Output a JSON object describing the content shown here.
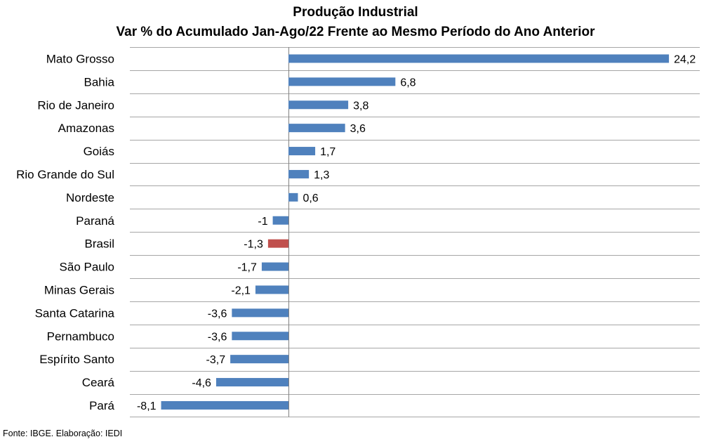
{
  "chart_data": {
    "type": "bar",
    "orientation": "horizontal",
    "title": "Produção Industrial",
    "subtitle": "Var % do Acumulado Jan-Ago/22 Frente ao Mesmo Período do Ano Anterior",
    "categories": [
      "Mato Grosso",
      "Bahia",
      "Rio de Janeiro",
      "Amazonas",
      "Goiás",
      "Rio Grande do Sul",
      "Nordeste",
      "Paraná",
      "Brasil",
      "São Paulo",
      "Minas Gerais",
      "Santa Catarina",
      "Pernambuco",
      "Espírito Santo",
      "Ceará",
      "Pará"
    ],
    "values": [
      24.2,
      6.8,
      3.8,
      3.6,
      1.7,
      1.3,
      0.6,
      -1,
      -1.3,
      -1.7,
      -2.1,
      -3.6,
      -3.6,
      -3.7,
      -4.6,
      -8.1
    ],
    "value_labels": [
      "24,2",
      "6,8",
      "3,8",
      "3,6",
      "1,7",
      "1,3",
      "0,6",
      "-1",
      "-1,3",
      "-1,7",
      "-2,1",
      "-3,6",
      "-3,6",
      "-3,7",
      "-4,6",
      "-8,1"
    ],
    "xlim": [
      -10,
      26
    ],
    "grid": true,
    "colors": {
      "default": "#4f81bd",
      "highlight": "#c0504d",
      "highlight_category": "Brasil",
      "grid": "#a6a6a6"
    }
  },
  "footer": {
    "source": "Fonte: IBGE. Elaboração: IEDI"
  }
}
